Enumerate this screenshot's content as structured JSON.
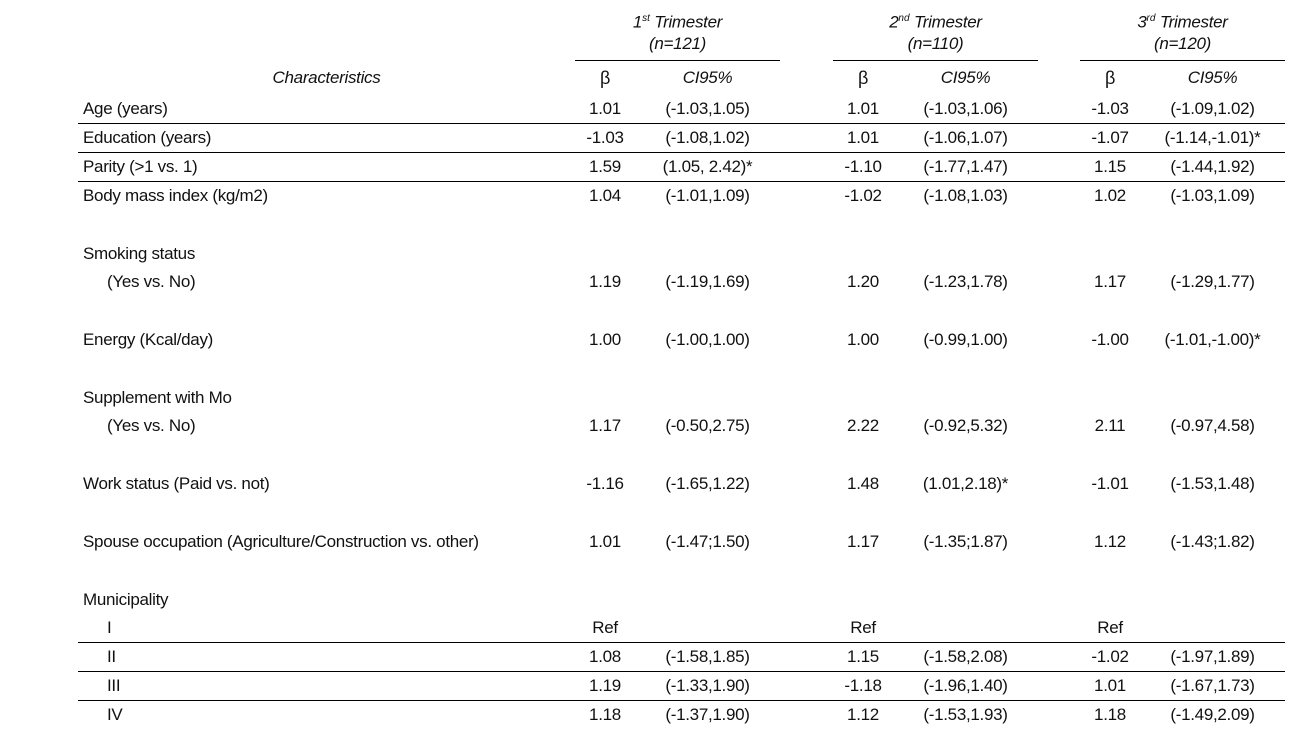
{
  "table": {
    "characteristics_label": "Characteristics",
    "groups": [
      {
        "title_num": "1",
        "title_sup": "st",
        "title_rest": " Trimester",
        "n_label": "(n=121)",
        "beta_label": "β",
        "ci_label": "CI95%"
      },
      {
        "title_num": "2",
        "title_sup": "nd",
        "title_rest": " Trimester",
        "n_label": "(n=110)",
        "beta_label": "β",
        "ci_label": "CI95%"
      },
      {
        "title_num": "3",
        "title_sup": "rd",
        "title_rest": " Trimester",
        "n_label": "(n=120)",
        "beta_label": "β",
        "ci_label": "CI95%"
      }
    ],
    "rows": [
      {
        "label": "Age (years)",
        "indent": 0,
        "rule": true,
        "cells": [
          "1.01",
          "(-1.03,1.05)",
          "1.01",
          "(-1.03,1.06)",
          "-1.03",
          "(-1.09,1.02)"
        ]
      },
      {
        "label": "Education (years)",
        "indent": 0,
        "rule": true,
        "cells": [
          "-1.03",
          "(-1.08,1.02)",
          "1.01",
          "(-1.06,1.07)",
          "-1.07",
          "(-1.14,-1.01)*"
        ]
      },
      {
        "label": "Parity (>1 vs. 1)",
        "indent": 0,
        "rule": true,
        "cells": [
          "1.59",
          "(1.05, 2.42)*",
          "-1.10",
          "(-1.77,1.47)",
          "1.15",
          "(-1.44,1.92)"
        ]
      },
      {
        "label": "Body mass index (kg/m2)",
        "indent": 0,
        "rule": false,
        "cells": [
          "1.04",
          "(-1.01,1.09)",
          "-1.02",
          "(-1.08,1.03)",
          "1.02",
          "(-1.03,1.09)"
        ]
      },
      {
        "spacer": true
      },
      {
        "label": "Smoking status",
        "indent": 0,
        "rule": false,
        "cells": [
          "",
          "",
          "",
          "",
          "",
          ""
        ]
      },
      {
        "label": "(Yes vs. No)",
        "indent": 1,
        "rule": false,
        "cells": [
          "1.19",
          "(-1.19,1.69)",
          "1.20",
          "(-1.23,1.78)",
          "1.17",
          "(-1.29,1.77)"
        ]
      },
      {
        "spacer": true
      },
      {
        "label": "Energy (Kcal/day)",
        "indent": 0,
        "rule": false,
        "cells": [
          "1.00",
          "(-1.00,1.00)",
          "1.00",
          "(-0.99,1.00)",
          "-1.00",
          "(-1.01,-1.00)*"
        ]
      },
      {
        "spacer": true
      },
      {
        "label": "Supplement with Mo",
        "indent": 0,
        "rule": false,
        "cells": [
          "",
          "",
          "",
          "",
          "",
          ""
        ]
      },
      {
        "label": "(Yes vs. No)",
        "indent": 1,
        "rule": false,
        "cells": [
          "1.17",
          "(-0.50,2.75)",
          "2.22",
          "(-0.92,5.32)",
          "2.11",
          "(-0.97,4.58)"
        ]
      },
      {
        "spacer": true
      },
      {
        "label": "Work status (Paid vs. not)",
        "indent": 0,
        "rule": false,
        "cells": [
          "-1.16",
          "(-1.65,1.22)",
          "1.48",
          "(1.01,2.18)*",
          "-1.01",
          "(-1.53,1.48)"
        ]
      },
      {
        "spacer": true
      },
      {
        "label": "Spouse occupation (Agriculture/Construction vs. other)",
        "indent": 0,
        "rule": false,
        "cells": [
          "1.01",
          "(-1.47;1.50)",
          "1.17",
          "(-1.35;1.87)",
          "1.12",
          "(-1.43;1.82)"
        ]
      },
      {
        "spacer": true
      },
      {
        "label": "Municipality",
        "indent": 0,
        "rule": false,
        "cells": [
          "",
          "",
          "",
          "",
          "",
          ""
        ]
      },
      {
        "label": "I",
        "indent": 1,
        "rule": true,
        "cells": [
          "Ref",
          "",
          "Ref",
          "",
          "Ref",
          ""
        ]
      },
      {
        "label": "II",
        "indent": 1,
        "rule": true,
        "cells": [
          "1.08",
          "(-1.58,1.85)",
          "1.15",
          "(-1.58,2.08)",
          "-1.02",
          "(-1.97,1.89)"
        ]
      },
      {
        "label": "III",
        "indent": 1,
        "rule": true,
        "cells": [
          "1.19",
          "(-1.33,1.90)",
          "-1.18",
          "(-1.96,1.40)",
          "1.01",
          "(-1.67,1.73)"
        ]
      },
      {
        "label": "IV",
        "indent": 1,
        "rule": false,
        "cells": [
          "1.18",
          "(-1.37,1.90)",
          "1.12",
          "(-1.53,1.93)",
          "1.18",
          "(-1.49,2.09)"
        ]
      }
    ]
  }
}
